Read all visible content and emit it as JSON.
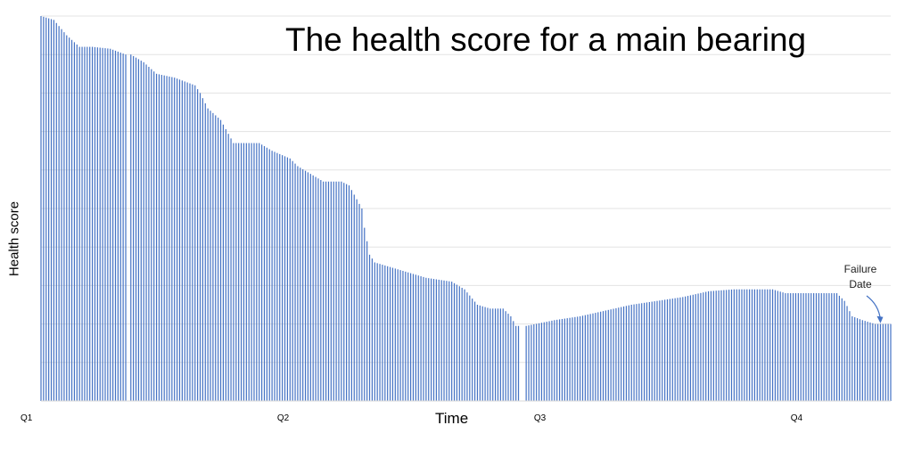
{
  "chart_data": {
    "type": "bar",
    "title": "The health score for a main bearing",
    "xlabel": "Time",
    "ylabel": "Health score",
    "categories": [
      "Q1",
      "Q2",
      "Q3",
      "Q4"
    ],
    "category_positions": [
      0,
      100,
      200,
      300
    ],
    "x_range": [
      0,
      331
    ],
    "ylim": [
      0,
      100
    ],
    "grid": true,
    "bar_color": "#4472c4",
    "gaps": [
      [
        33,
        35
      ],
      [
        116,
        117
      ],
      [
        186,
        189
      ],
      [
        309,
        310
      ]
    ],
    "keypoints": [
      [
        0,
        100
      ],
      [
        5,
        99
      ],
      [
        10,
        95
      ],
      [
        15,
        92
      ],
      [
        20,
        92
      ],
      [
        27,
        91.5
      ],
      [
        33,
        90
      ],
      [
        35,
        90
      ],
      [
        40,
        88
      ],
      [
        45,
        85
      ],
      [
        52,
        84
      ],
      [
        60,
        82
      ],
      [
        62,
        80
      ],
      [
        65,
        76
      ],
      [
        70,
        73
      ],
      [
        75,
        67
      ],
      [
        85,
        67
      ],
      [
        90,
        65
      ],
      [
        97,
        63
      ],
      [
        100,
        61
      ],
      [
        105,
        59
      ],
      [
        110,
        57
      ],
      [
        116,
        57
      ],
      [
        117,
        57
      ],
      [
        120,
        56
      ],
      [
        125,
        50
      ],
      [
        126,
        45
      ],
      [
        128,
        38
      ],
      [
        130,
        36
      ],
      [
        140,
        34
      ],
      [
        150,
        32
      ],
      [
        160,
        31
      ],
      [
        165,
        29
      ],
      [
        170,
        25
      ],
      [
        175,
        24
      ],
      [
        180,
        24
      ],
      [
        183,
        22
      ],
      [
        185,
        19.5
      ],
      [
        186,
        19.5
      ],
      [
        189,
        19.5
      ],
      [
        200,
        21
      ],
      [
        210,
        22
      ],
      [
        220,
        23.5
      ],
      [
        230,
        25
      ],
      [
        240,
        26
      ],
      [
        250,
        27
      ],
      [
        260,
        28.5
      ],
      [
        270,
        29
      ],
      [
        280,
        29
      ],
      [
        285,
        29
      ],
      [
        290,
        28
      ],
      [
        300,
        28
      ],
      [
        305,
        28
      ],
      [
        309,
        28
      ],
      [
        310,
        28
      ],
      [
        313,
        26
      ],
      [
        316,
        22
      ],
      [
        320,
        21
      ],
      [
        325,
        20
      ],
      [
        331,
        20
      ]
    ],
    "annotation": {
      "lines": [
        "Failure",
        "Date"
      ],
      "x": 327,
      "y": 19.5
    }
  }
}
